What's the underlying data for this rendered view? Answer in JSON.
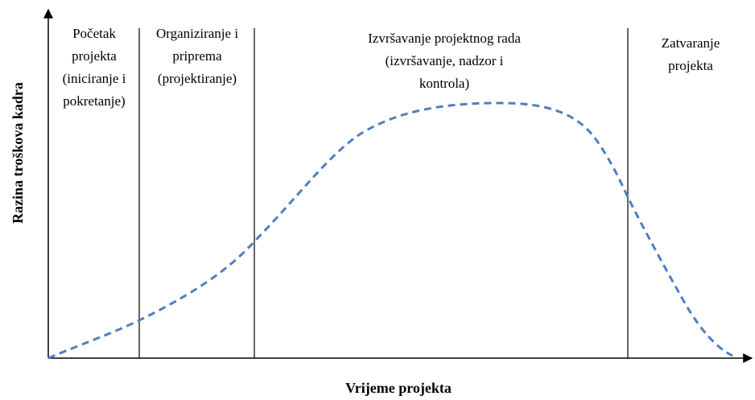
{
  "axes": {
    "y_label": "Razina troškova kadra",
    "x_label": "Vrijeme projekta"
  },
  "phases": [
    {
      "lines": [
        "Početak",
        "projekta",
        "(iniciranje i",
        "pokretanje)"
      ]
    },
    {
      "lines": [
        "Organiziranje i",
        "priprema",
        "(projektiranje)"
      ]
    },
    {
      "lines": [
        "Izvršavanje projektnog rada",
        "(izvršavanje, nadzor i",
        "kontrola)"
      ]
    },
    {
      "lines": [
        "Zatvaranje",
        "projekta"
      ]
    }
  ]
}
